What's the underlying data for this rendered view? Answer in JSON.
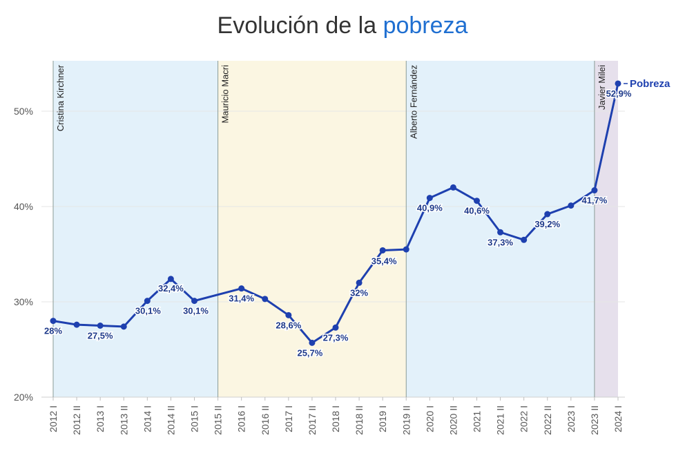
{
  "title_prefix": "Evolución de la ",
  "title_highlight": "pobreza",
  "chart_data": {
    "type": "line",
    "title": "Evolución de la pobreza",
    "ylim": [
      20,
      55
    ],
    "yticks": [
      {
        "value": 20,
        "label": "20%"
      },
      {
        "value": 30,
        "label": "30%"
      },
      {
        "value": 40,
        "label": "40%"
      },
      {
        "value": 50,
        "label": "50%"
      }
    ],
    "categories": [
      "2012 I",
      "2012 II",
      "2013 I",
      "2013 II",
      "2014 I",
      "2014 II",
      "2015 I",
      "2015 II",
      "2016 I",
      "2016 II",
      "2017 I",
      "2017 II",
      "2018 I",
      "2018 II",
      "2019 I",
      "2019 II",
      "2020 I",
      "2020 II",
      "2021 I",
      "2021 II",
      "2022 I",
      "2022 II",
      "2023 I",
      "2023 II",
      "2024 I"
    ],
    "series": [
      {
        "name": "Pobreza",
        "color": "#1e40af",
        "points": [
          {
            "x": 0,
            "y": 28,
            "label": "28%"
          },
          {
            "x": 1,
            "y": 27.6
          },
          {
            "x": 2,
            "y": 27.5,
            "label": "27,5%"
          },
          {
            "x": 3,
            "y": 27.4
          },
          {
            "x": 4,
            "y": 30.1,
            "label": "30,1%"
          },
          {
            "x": 5,
            "y": 32.4,
            "label": "32,4%"
          },
          {
            "x": 6,
            "y": 30.1,
            "label": "30,1%"
          },
          {
            "x": 8,
            "y": 31.4,
            "label": "31,4%"
          },
          {
            "x": 9,
            "y": 30.3
          },
          {
            "x": 10,
            "y": 28.6,
            "label": "28,6%"
          },
          {
            "x": 11,
            "y": 25.7,
            "label": "25,7%"
          },
          {
            "x": 12,
            "y": 27.3,
            "label": "27,3%"
          },
          {
            "x": 13,
            "y": 32,
            "label": "32%"
          },
          {
            "x": 14,
            "y": 35.4,
            "label": "35,4%"
          },
          {
            "x": 15,
            "y": 35.5
          },
          {
            "x": 16,
            "y": 40.9,
            "label": "40,9%"
          },
          {
            "x": 17,
            "y": 42
          },
          {
            "x": 18,
            "y": 40.6,
            "label": "40,6%"
          },
          {
            "x": 19,
            "y": 37.3,
            "label": "37,3%"
          },
          {
            "x": 20,
            "y": 36.5
          },
          {
            "x": 21,
            "y": 39.2,
            "label": "39,2%"
          },
          {
            "x": 22,
            "y": 40.1
          },
          {
            "x": 23,
            "y": 41.7,
            "label": "41,7%"
          },
          {
            "x": 24,
            "y": 52.9,
            "label": "52,9%"
          }
        ]
      }
    ],
    "legend_label": "Pobreza",
    "presidencies": [
      {
        "name": "Cristina Kirchner",
        "start": 0,
        "end": 7,
        "color": "#e3f1fa"
      },
      {
        "name": "Mauricio Macri",
        "start": 7,
        "end": 15,
        "color": "#fbf6e2"
      },
      {
        "name": "Alberto Fernández",
        "start": 15,
        "end": 23,
        "color": "#e3f1fa"
      },
      {
        "name": "Javier Milei",
        "start": 23,
        "end": 24,
        "color": "#e6e0ec"
      }
    ]
  }
}
